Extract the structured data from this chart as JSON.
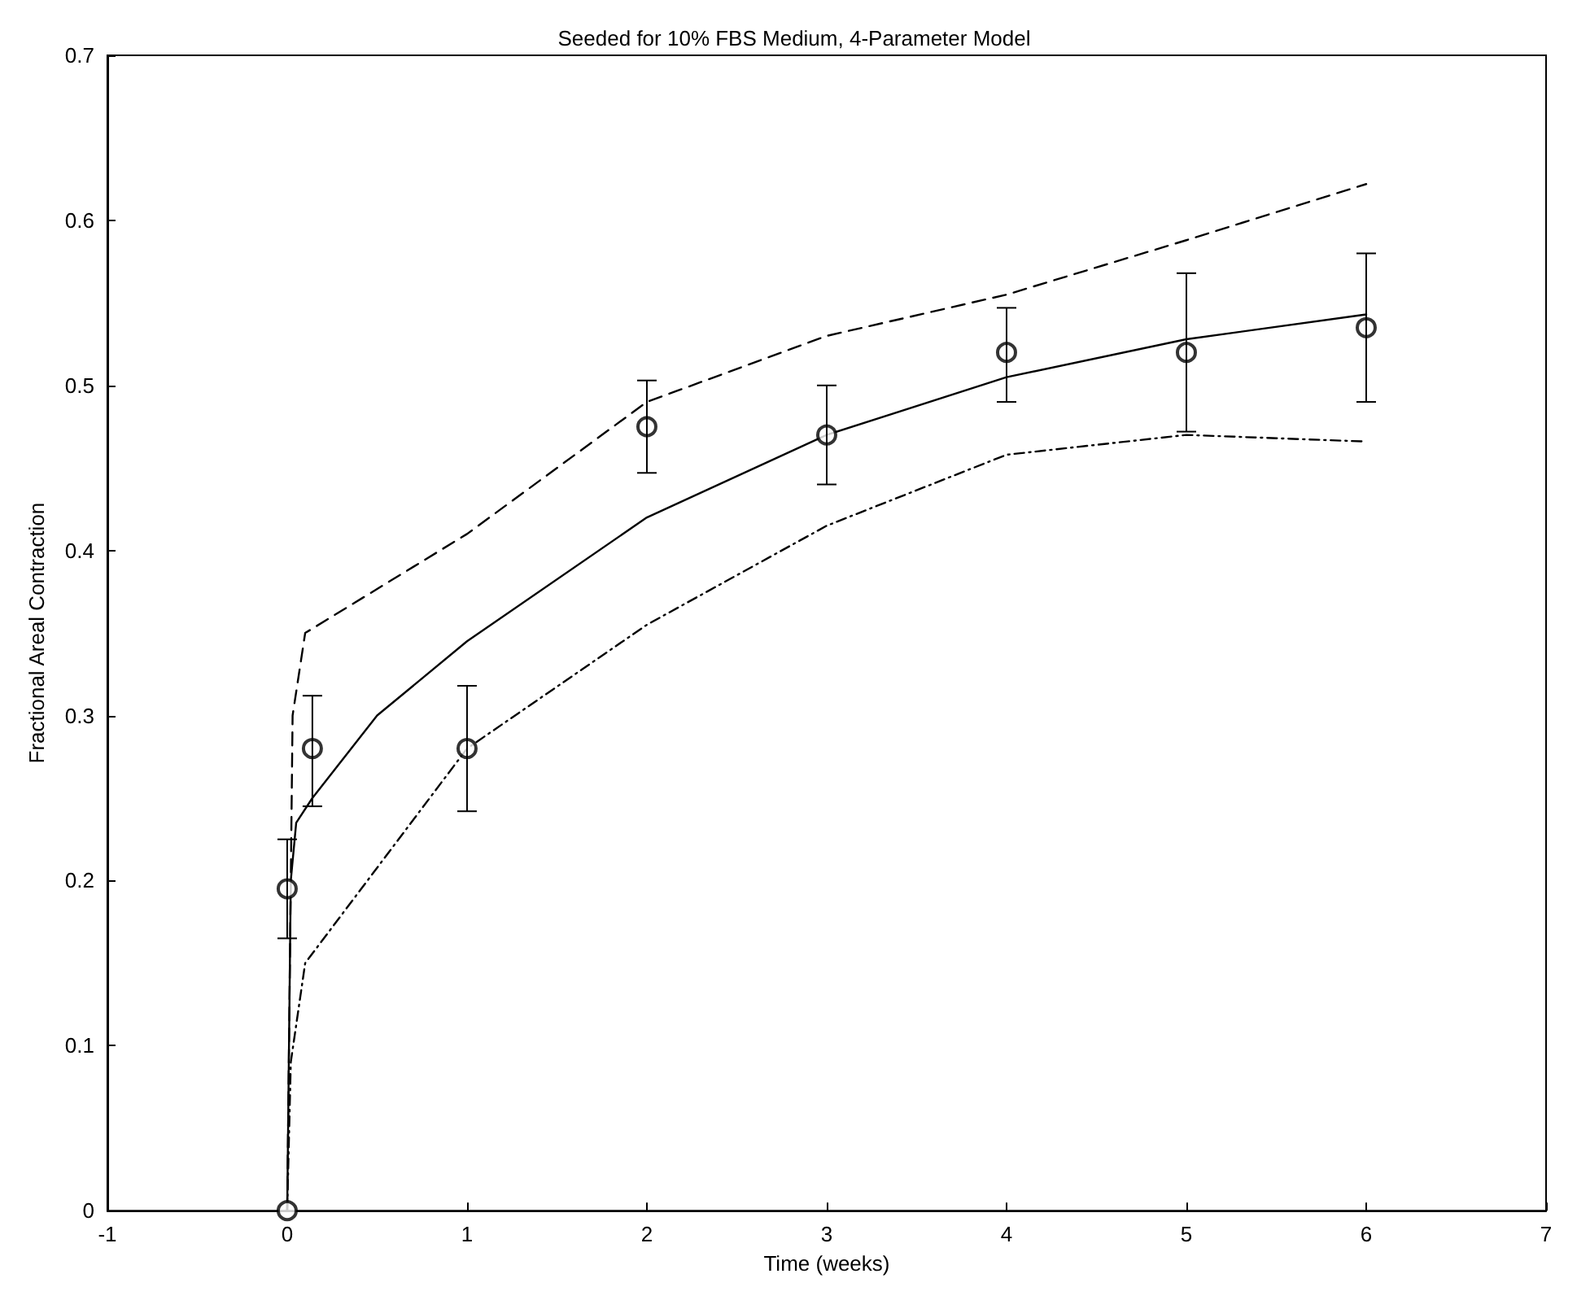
{
  "chart_data": {
    "type": "line",
    "title": "Seeded for 10% FBS Medium, 4-Parameter Model",
    "xlabel": "Time (weeks)",
    "ylabel": "Fractional Areal Contraction",
    "xlim": [
      -1,
      7
    ],
    "xticks": [
      -1,
      0,
      1,
      2,
      3,
      4,
      5,
      6,
      7
    ],
    "ylim": [
      0,
      0.7
    ],
    "yticks": [
      0,
      0.1,
      0.2,
      0.3,
      0.4,
      0.5,
      0.6,
      0.7
    ],
    "grid": false,
    "series": [
      {
        "type": "scatter",
        "color": "#000000",
        "marker": "circle",
        "x": [
          0,
          0,
          0.14,
          1,
          2,
          3,
          4,
          5,
          6
        ],
        "values": [
          0,
          0.195,
          0.28,
          0.28,
          0.475,
          0.47,
          0.52,
          0.52,
          0.535
        ],
        "errors": [
          null,
          0.03,
          [
            0.245,
            0.312
          ],
          [
            0.242,
            0.318
          ],
          [
            0.447,
            0.503
          ],
          [
            0.44,
            0.5
          ],
          [
            0.49,
            0.547
          ],
          [
            0.472,
            0.568
          ],
          [
            0.49,
            0.58
          ]
        ]
      },
      {
        "color": "#000000",
        "line_style": "solid",
        "marker": "none",
        "x": [
          0,
          0.02,
          0.05,
          0.14,
          0.5,
          1,
          2,
          3,
          4,
          5,
          6
        ],
        "values": [
          0,
          0.2,
          0.235,
          0.25,
          0.3,
          0.345,
          0.42,
          0.47,
          0.505,
          0.528,
          0.543
        ]
      },
      {
        "color": "#000000",
        "line_style": "dashed",
        "marker": "none",
        "x": [
          0,
          0.03,
          0.1,
          1,
          2,
          3,
          4,
          5,
          6
        ],
        "values": [
          0,
          0.3,
          0.35,
          0.41,
          0.49,
          0.53,
          0.555,
          0.588,
          0.622
        ]
      },
      {
        "color": "#000000",
        "line_style": "dotted",
        "marker": "none",
        "x": [
          0,
          0.02,
          0.1,
          1,
          2,
          3,
          4,
          5,
          6
        ],
        "values": [
          0,
          0.09,
          0.15,
          0.28,
          0.355,
          0.415,
          0.458,
          0.47,
          0.466
        ]
      }
    ]
  }
}
